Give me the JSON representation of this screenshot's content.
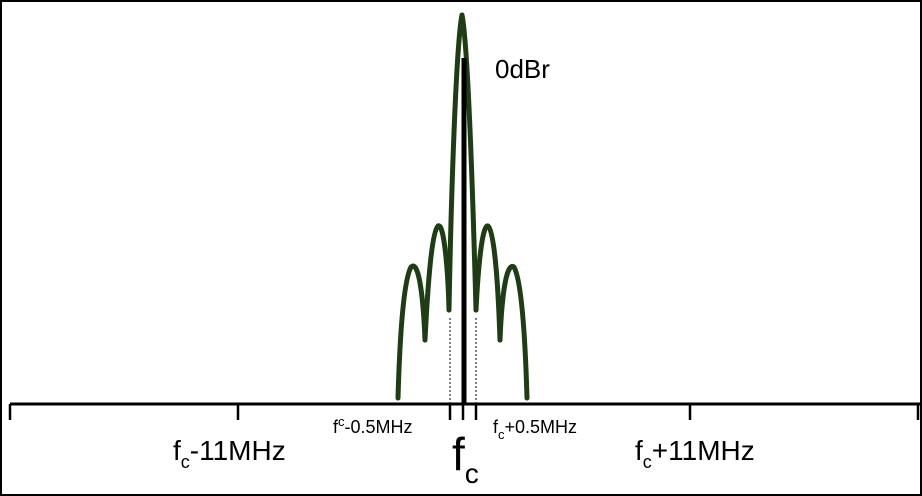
{
  "diagram": {
    "peak_label": "0dBr",
    "labels": {
      "fc_minus_11": {
        "base": "f",
        "sub": "c",
        "text": "-11MHz"
      },
      "fc_minus_half": {
        "base": "f",
        "sub": "c",
        "text": "-0.5MHz"
      },
      "fc_center": {
        "base": "f",
        "sub": "c"
      },
      "fc_plus_half": {
        "base": "f",
        "sub": "c",
        "text": "+0.5MHz"
      },
      "fc_plus_11": {
        "base": "f",
        "sub": "c",
        "text": "+11MHz"
      }
    },
    "colors": {
      "spectrum": "#1e3d14",
      "axis": "#000000",
      "frame": "#000000"
    }
  }
}
